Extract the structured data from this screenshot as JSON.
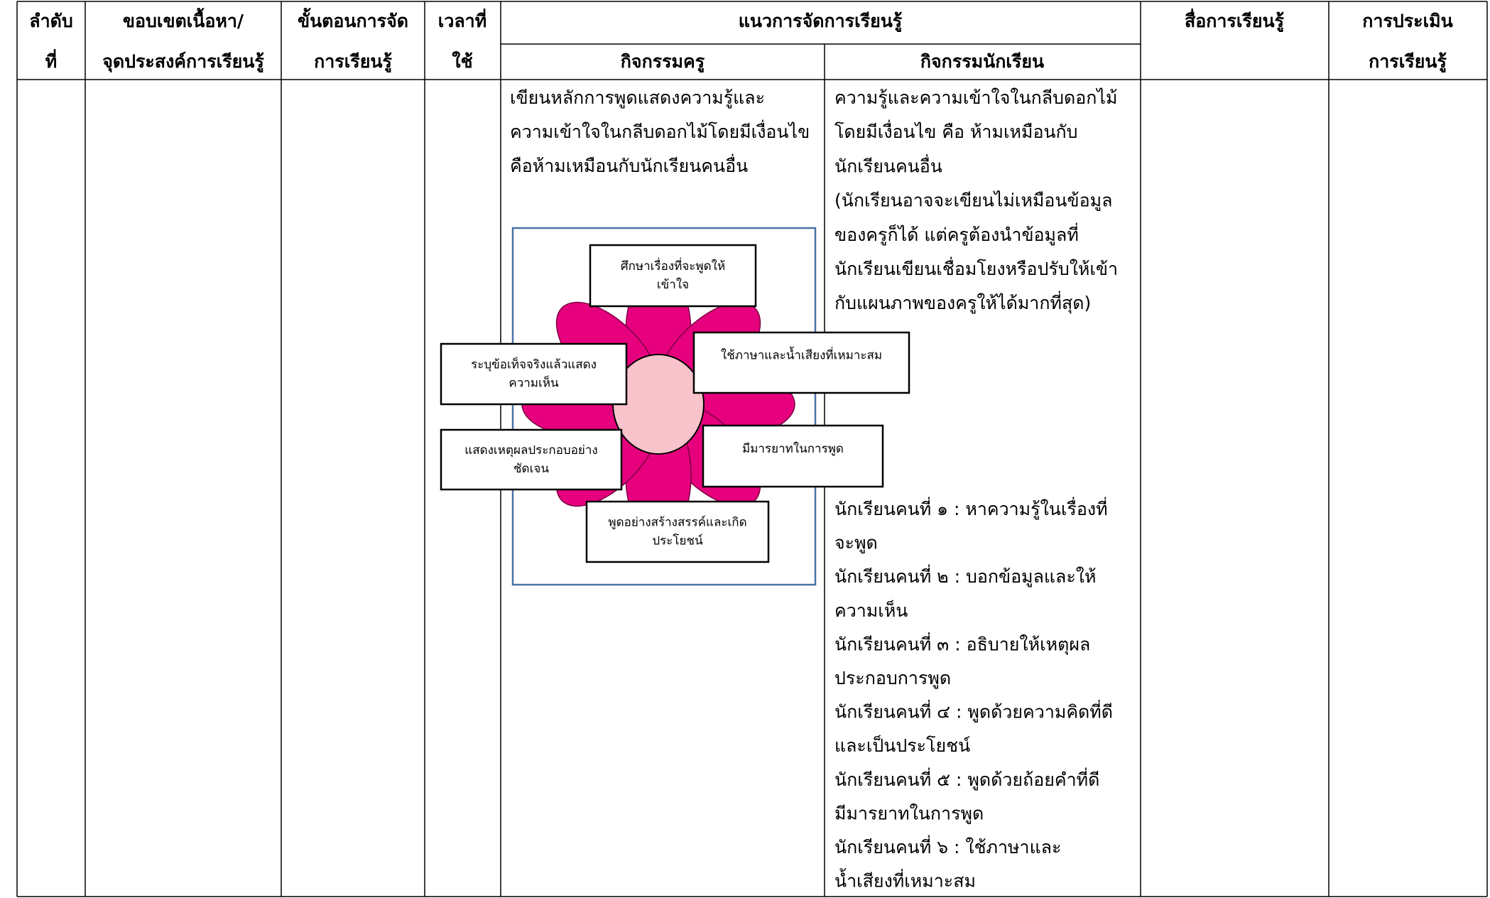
{
  "table": {
    "headers": [
      [
        "ลำดับ",
        "ที่"
      ],
      [
        "ขอบเขตเนื้อหา/",
        "จุดประสงค์การเรียนรู้"
      ],
      [
        "ขั้นตอนการจัด",
        "การเรียนรู้"
      ],
      [
        "เวลาที่",
        "ใช้"
      ],
      [
        "สื่อการเรียนรู้"
      ],
      [
        "การประเมิน",
        "การเรียนรู้"
      ]
    ],
    "group_header": "แนวการจัดการเรียนรู้",
    "subheaders": [
      "กิจกรรมครู",
      "กิจกรรมนักเรียน"
    ],
    "teacher_activity": [
      "เขียนหลักการพูดแสดงความรู้และ",
      "ความเข้าใจในกลีบดอกไม้โดยมีเงื่อนไข",
      "คือห้ามเหมือนกับนักเรียนคนอื่น"
    ],
    "student_activity": [
      "ความรู้และความเข้าใจในกลีบดอกไม้",
      "โดยมีเงื่อนไข คือ ห้ามเหมือนกับ",
      "นักเรียนคนอื่น",
      "(นักเรียนอาจจะเขียนไม่เหมือนข้อมูล",
      "ของครูก็ได้ แต่ครูต้องนำข้อมูลที่",
      "นักเรียนเขียนเชื่อมโยงหรือปรับให้เข้า",
      "กับแผนภาพของครูให้ได้มากที่สุด)"
    ],
    "student_roles": [
      "นักเรียนคนที่ ๑ : หาความรู้ในเรื่องที่",
      "จะพูด",
      "นักเรียนคนที่ ๒ : บอกข้อมูลและให้",
      "ความเห็น",
      "นักเรียนคนที่ ๓ : อธิบายให้เหตุผล",
      "ประกอบการพูด",
      "นักเรียนคนที่ ๔ : พูดด้วยความคิดที่ดี",
      "และเป็นประโยชน์",
      "นักเรียนคนที่ ๕ : พูดด้วยถ้อยคำที่ดี",
      "มีมารยาทในการพูด",
      "นักเรียนคนที่ ๖ : ใช้ภาษาและ",
      "น้ำเสียงที่เหมาะสม"
    ]
  },
  "diagram": {
    "labels": [
      [
        "ศึกษาเรื่องที่จะพูดให้",
        "เข้าใจ"
      ],
      [
        "ใช้ภาษาและน้ำเสียงที่เหมาะสม"
      ],
      [
        "ระบุข้อเท็จจริงแล้วแสดง",
        "ความเห็น"
      ],
      [
        "แสดงเหตุผลประกอบอย่าง",
        "ชัดเจน"
      ],
      [
        "มีมารยาทในการพูด"
      ],
      [
        "พูดอย่างสร้างสรรค์และเกิด",
        "ประโยชน์"
      ]
    ]
  }
}
